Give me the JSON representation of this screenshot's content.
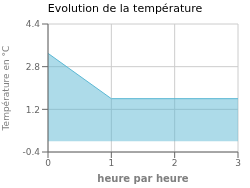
{
  "chart_data": {
    "type": "area",
    "title": "Evolution de la température",
    "xlabel": "heure par heure",
    "ylabel": "Température en °C",
    "x": [
      0,
      1,
      3
    ],
    "values": [
      3.3,
      1.6,
      1.6
    ],
    "color": "#5bb8d4",
    "xlim": [
      0,
      3
    ],
    "ylim": [
      -0.4,
      4.4
    ],
    "xticks": [
      0,
      1,
      2,
      3
    ],
    "yticks": [
      -0.4,
      1.2,
      2.8,
      4.4
    ],
    "grid": true
  }
}
